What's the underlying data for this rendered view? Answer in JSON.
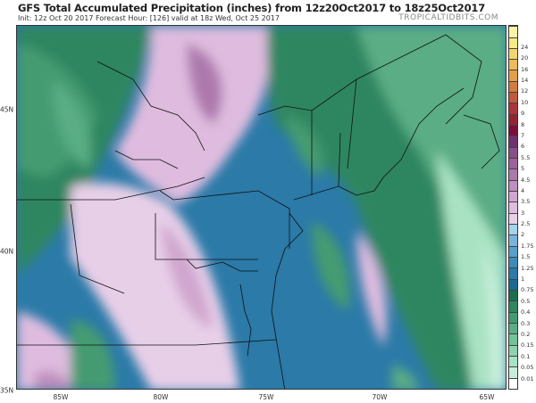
{
  "header": {
    "title": "GFS Total Accumulated Precipitation (inches) from 12z20Oct2017 to 18z25Oct2017",
    "subtitle": "Init: 12z Oct 20 2017   Forecast Hour: [126]   valid at 18z Wed, Oct 25 2017",
    "brand": "TROPICALTIDBITS.COM"
  },
  "axes": {
    "lat_labels": [
      "45N",
      "40N",
      "35N"
    ],
    "lon_labels": [
      "85W",
      "80W",
      "75W",
      "70W",
      "65W"
    ]
  },
  "colorbar": {
    "unit": "inches",
    "labels": [
      "0.01",
      "0.05",
      "0.1",
      "0.15",
      "0.2",
      "0.3",
      "0.4",
      "0.5",
      "0.75",
      "1",
      "1.25",
      "1.5",
      "1.75",
      "2",
      "2.5",
      "3",
      "3.5",
      "4",
      "4.5",
      "5",
      "5.5",
      "6",
      "7",
      "8",
      "9",
      "10",
      "12",
      "14",
      "16",
      "20",
      "24"
    ],
    "colors": [
      "#ffffff",
      "#c8eedb",
      "#a8e2c3",
      "#8dd3ae",
      "#73c198",
      "#5aad84",
      "#449b71",
      "#2f8660",
      "#1c6e4c",
      "#1a6a94",
      "#2b7aa8",
      "#3e8bb7",
      "#5a9fc8",
      "#79b5d8",
      "#a5d2ec",
      "#e8cfe8",
      "#dfbcdf",
      "#d0a6cf",
      "#bf8fbe",
      "#ad79ad",
      "#9a639b",
      "#864f88",
      "#6e3271",
      "#7a0f3a",
      "#932431",
      "#a9363a",
      "#c05a3d",
      "#d37c3f",
      "#e2a04a",
      "#ecbd5a",
      "#f3d66e",
      "#f7e987"
    ]
  }
}
